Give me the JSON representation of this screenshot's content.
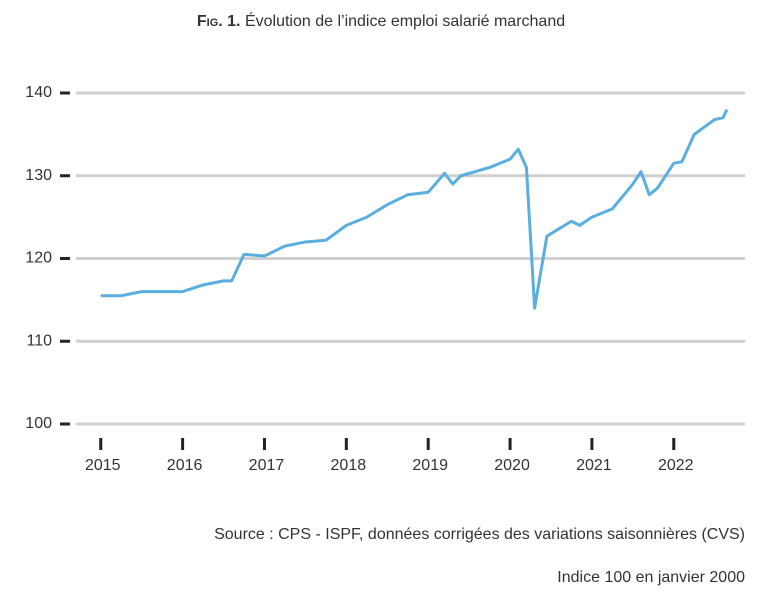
{
  "chart_data": {
    "type": "line",
    "figure_label": "Fig. 1.",
    "title": "Évolution de l’indice emploi salarié marchand",
    "source": "Source : CPS - ISPF, données corrigées des variations saisonnières (CVS)",
    "note": "Indice 100 en janvier 2000",
    "x": [
      2015,
      2015.25,
      2015.5,
      2015.75,
      2016,
      2016.25,
      2016.5,
      2016.6,
      2016.75,
      2017,
      2017.25,
      2017.5,
      2017.75,
      2018,
      2018.25,
      2018.5,
      2018.75,
      2019,
      2019.2,
      2019.3,
      2019.4,
      2019.75,
      2020,
      2020.1,
      2020.2,
      2020.3,
      2020.45,
      2020.75,
      2020.85,
      2021,
      2021.25,
      2021.5,
      2021.6,
      2021.7,
      2021.8,
      2022,
      2022.1,
      2022.25,
      2022.5,
      2022.6,
      2022.65
    ],
    "series": [
      {
        "name": "Indice emploi salarié marchand",
        "color": "#5aaee0",
        "values": [
          115.5,
          115.5,
          116.0,
          116.0,
          116.0,
          116.8,
          117.3,
          117.3,
          120.5,
          120.3,
          121.5,
          122.0,
          122.2,
          124.0,
          125.0,
          126.5,
          127.7,
          128.0,
          130.3,
          129.0,
          130.0,
          131.0,
          132.0,
          133.2,
          131.0,
          114.0,
          122.7,
          124.5,
          124.0,
          125.0,
          126.0,
          129.0,
          130.5,
          127.7,
          128.5,
          131.5,
          131.7,
          135.0,
          136.8,
          137.0,
          138.0
        ]
      }
    ],
    "xlim": [
      2014.6,
      2022.87
    ],
    "xticks": [
      2015,
      2016,
      2017,
      2018,
      2019,
      2020,
      2021,
      2022
    ],
    "ylim": [
      100,
      140
    ],
    "yticks": [
      100,
      110,
      120,
      130,
      140
    ],
    "grid": true
  }
}
